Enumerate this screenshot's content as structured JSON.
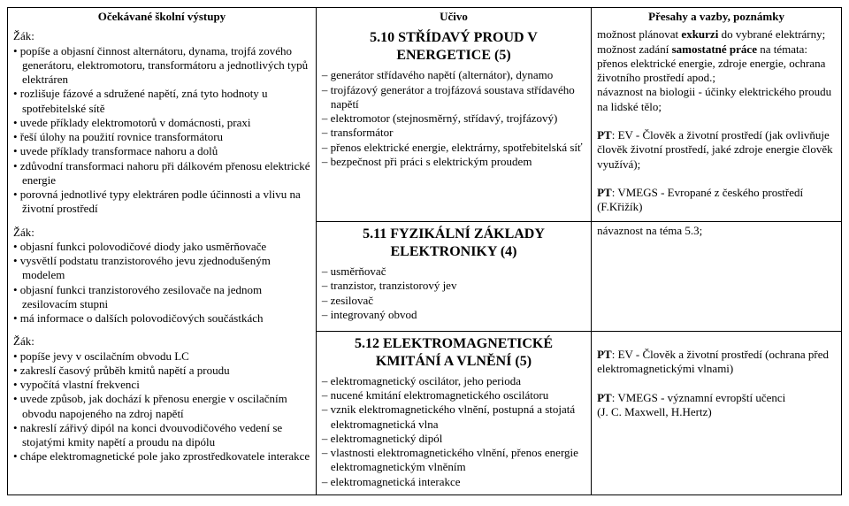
{
  "headers": {
    "col1": "Očekávané školní výstupy",
    "col2": "Učivo",
    "col3": "Přesahy a vazby, poznámky"
  },
  "sections": [
    {
      "title": "5.10 STŘÍDAVÝ PROUD V ENERGETICE (5)",
      "zakLabel": "Žák:",
      "col1Lines": [
        "• popíše a objasní činnost alternátoru, dynama, trojfá zového generátoru, elektromotoru, transformátoru a jednotlivých typů elektráren",
        "• rozlišuje fázové a sdružené napětí, zná tyto hodnoty u spotřebitelské sítě",
        "• uvede příklady elektromotorů v domácnosti, praxi",
        "• řeší úlohy na použití rovnice transformátoru",
        "• uvede příklady transformace nahoru a dolů",
        "• zdůvodní transformaci nahoru při dálkovém přenosu elektrické energie",
        "• porovná jednotlivé typy elektráren podle účinnosti a vlivu na životní prostředí"
      ],
      "col2Lines": [
        "– generátor střídavého napětí (alternátor), dynamo",
        "– trojfázový generátor a trojfázová soustava střídavého napětí",
        "– elektromotor (stejnosměrný, střídavý, trojfázový)",
        "– transformátor",
        "– přenos elektrické energie, elektrárny, spotřebitelská síť",
        "– bezpečnost při práci s elektrickým proudem"
      ],
      "col3Html": "možnost plánovat <b>exkurzi</b> do vybrané elektrárny; možnost zadání <b>samostatné práce</b> na témata: přenos elektrické energie, zdroje energie, ochrana životního prostředí apod.;<br>návaznost na biologii - účinky elektrického proudu na lidské tělo;<br><br><b>PT</b>: EV - Člověk a životní prostředí (jak ovlivňuje člověk životní prostředí, jaké zdroje energie člověk využívá);<br><br><b>PT</b>: VMEGS - Evropané z českého prostředí (F.Křižík)"
    },
    {
      "title": "5.11 FYZIKÁLNÍ ZÁKLADY ELEKTRONIKY (4)",
      "zakLabel": "Žák:",
      "col1Lines": [
        "• objasní funkci polovodičové diody jako usměrňovače",
        "• vysvětlí podstatu tranzistorového jevu zjednodušeným modelem",
        "• objasní funkci tranzistorového zesilovače na jednom zesilovacím stupni",
        "• má informace o dalších polovodičových součástkách"
      ],
      "col2Lines": [
        "– usměrňovač",
        "– tranzistor, tranzistorový jev",
        "– zesilovač",
        "– integrovaný obvod"
      ],
      "col3Html": "návaznost na téma 5.3;"
    },
    {
      "title": "5.12 ELEKTROMAGNETICKÉ KMITÁNÍ A VLNĚNÍ (5)",
      "zakLabel": "Žák:",
      "col1Lines": [
        "• popíše jevy v oscilačním obvodu LC",
        "• zakreslí časový průběh kmitů napětí a proudu",
        "• vypočítá vlastní frekvenci",
        "• uvede způsob, jak dochází k přenosu energie v oscilačním obvodu napojeného na zdroj napětí",
        "• nakreslí zářivý dipól na konci dvouvodičového vedení se stojatými kmity napětí a proudu na dipólu",
        "• chápe elektromagnetické pole jako zprostředkovatele interakce"
      ],
      "col2Lines": [
        "– elektromagnetický oscilátor, jeho perioda",
        "– nucené kmitání elektromagnetického oscilátoru",
        "– vznik elektromagnetického vlnění, postupná a stojatá elektromagnetická vlna",
        "– elektromagnetický dipól",
        "– vlastnosti elektromagnetického vlnění, přenos energie elektromagnetickým vlněním",
        "– elektromagnetická interakce"
      ],
      "col3Html": "<br><b>PT</b>: EV - Člověk a životní prostředí (ochrana před elektromagnetickými vlnami)<br><br><b>PT</b>: VMEGS - významní evropští učenci<br>(J. C. Maxwell, H.Hertz)"
    }
  ]
}
